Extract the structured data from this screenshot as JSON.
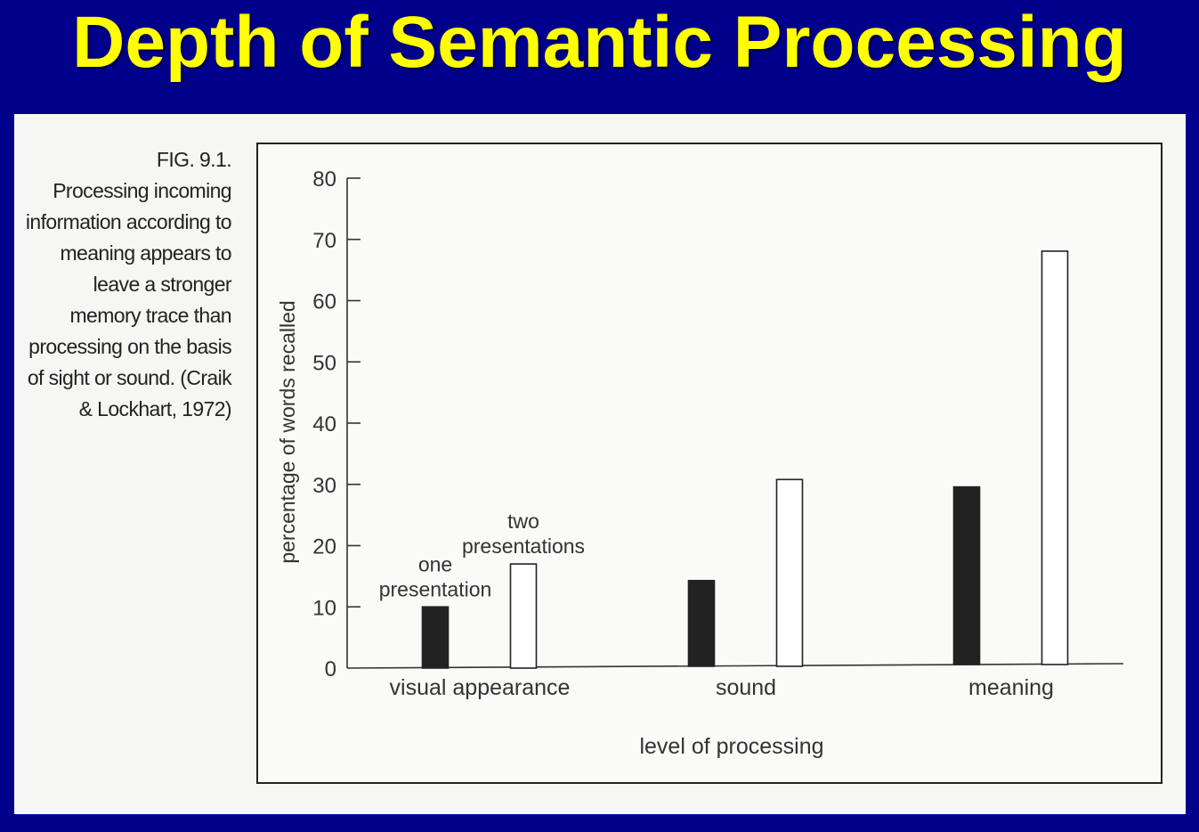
{
  "slide": {
    "title": "Depth of Semantic Processing"
  },
  "caption": {
    "label": "FIG. 9.1.",
    "text": "Processing incoming information according to meaning appears to leave a stronger memory trace than processing on the basis of sight or sound. (Craik & Lockhart, 1972)"
  },
  "chart_data": {
    "type": "bar",
    "categories": [
      "visual appearance",
      "sound",
      "meaning"
    ],
    "series": [
      {
        "name": "one presentation",
        "values": [
          10,
          14,
          29
        ],
        "color": "#222222"
      },
      {
        "name": "two presentations",
        "values": [
          17,
          30.5,
          67.5
        ],
        "color": "#ffffff"
      }
    ],
    "xlabel": "level of processing",
    "ylabel": "percentage of words recalled",
    "ylim": [
      0,
      80
    ],
    "yticks": [
      0,
      10,
      20,
      30,
      40,
      50,
      60,
      70,
      80
    ],
    "annotations": [
      {
        "text_lines": [
          "one",
          "presentation"
        ],
        "series": 0,
        "category": 0
      },
      {
        "text_lines": [
          "two",
          "presentations"
        ],
        "series": 1,
        "category": 0
      }
    ],
    "grid": false,
    "legend": "none"
  }
}
